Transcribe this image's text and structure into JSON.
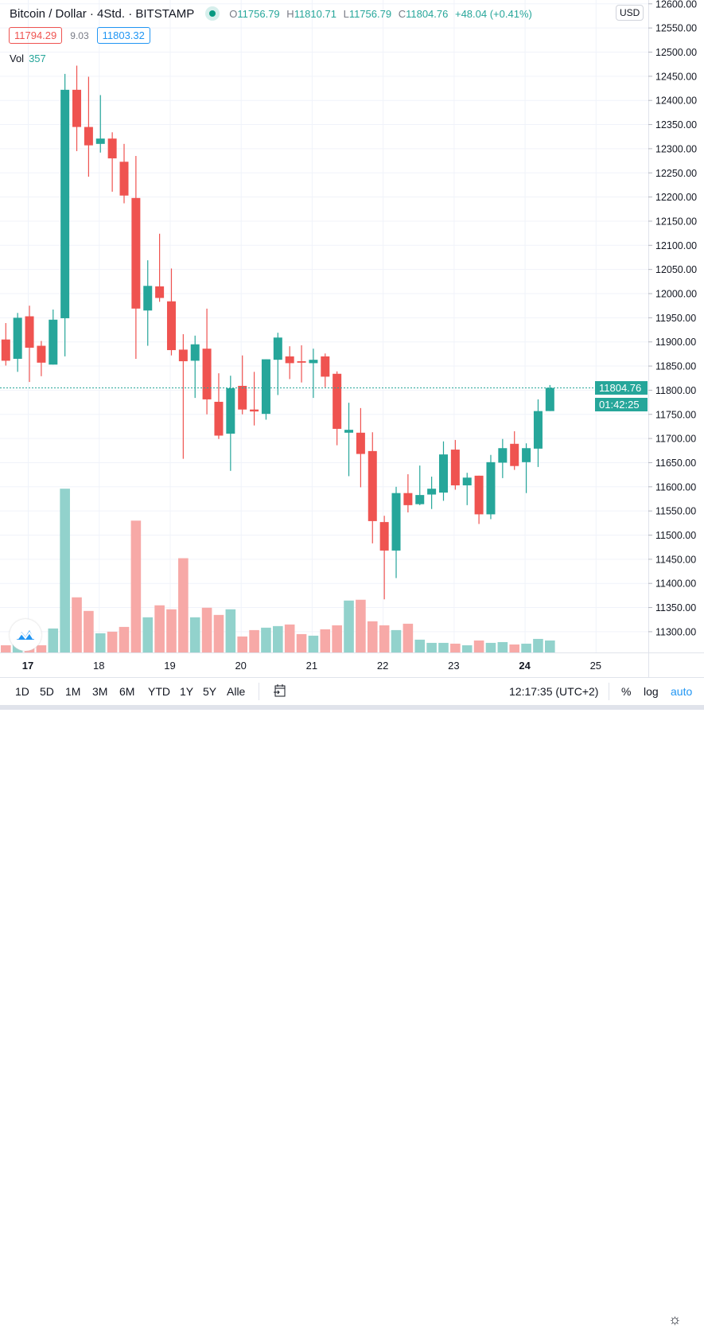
{
  "header": {
    "title": "Bitcoin / Dollar · 4Std. · BITSTAMP",
    "open_label": "O",
    "open": "11756.79",
    "high_label": "H",
    "high": "11810.71",
    "low_label": "L",
    "low": "11756.79",
    "close_label": "C",
    "close": "11804.76",
    "change": "+48.04 (+0.41%)",
    "bid": "11794.29",
    "spread": "9.03",
    "ask": "11803.32",
    "vol_label": "Vol",
    "vol_value": "357"
  },
  "price_axis": {
    "currency": "USD",
    "last_price": "11804.76",
    "countdown": "01:42:25"
  },
  "toolbar": {
    "ranges": [
      "1D",
      "5D",
      "1M",
      "3M",
      "6M",
      "YTD",
      "1Y",
      "5Y",
      "Alle"
    ],
    "time": "12:17:35 (UTC+2)",
    "percent": "%",
    "log": "log",
    "auto": "auto"
  },
  "colors": {
    "up": "#26a69a",
    "down": "#ef5350",
    "up_volume": "#92d2cc",
    "down_volume": "#f7a9a7",
    "grid": "#f0f3fa",
    "accent": "#2196f3"
  },
  "icons": {
    "status": "market-open-dot",
    "settings": "gear-icon",
    "goto_date": "calendar-icon",
    "logo": "tradingview-logo"
  },
  "chart_data": {
    "type": "candlestick",
    "interval": "4Std.",
    "ylim": [
      11292,
      12608
    ],
    "yticks": [
      "12600.00",
      "12550.00",
      "12500.00",
      "12450.00",
      "12400.00",
      "12350.00",
      "12300.00",
      "12250.00",
      "12200.00",
      "12150.00",
      "12100.00",
      "12050.00",
      "12000.00",
      "11950.00",
      "11900.00",
      "11850.00",
      "11800.00",
      "11750.00",
      "11700.00",
      "11650.00",
      "11600.00",
      "11550.00",
      "11500.00",
      "11450.00",
      "11400.00",
      "11350.00",
      "11300.00"
    ],
    "xticks": [
      {
        "label": "17",
        "candle": 2,
        "bold": true
      },
      {
        "label": "18",
        "candle": 8
      },
      {
        "label": "19",
        "candle": 14
      },
      {
        "label": "20",
        "candle": 20
      },
      {
        "label": "21",
        "candle": 26
      },
      {
        "label": "22",
        "candle": 32
      },
      {
        "label": "23",
        "candle": 38
      },
      {
        "label": "24",
        "candle": 44,
        "bold": true
      },
      {
        "label": "25",
        "candle": 50
      }
    ],
    "grid": true,
    "candles": [
      {
        "o": 11905,
        "h": 11939,
        "l": 11851,
        "c": 11861,
        "v": 214
      },
      {
        "o": 11865,
        "h": 11960,
        "l": 11838,
        "c": 11950,
        "v": 317
      },
      {
        "o": 11953,
        "h": 11975,
        "l": 11817,
        "c": 11888,
        "v": 357
      },
      {
        "o": 11892,
        "h": 11902,
        "l": 11829,
        "c": 11857,
        "v": 214
      },
      {
        "o": 11853,
        "h": 11967,
        "l": 11853,
        "c": 11946,
        "v": 714
      },
      {
        "o": 11949,
        "h": 12455,
        "l": 11870,
        "c": 12422,
        "v": 4877
      },
      {
        "o": 12422,
        "h": 12472,
        "l": 12295,
        "c": 12345,
        "v": 1642
      },
      {
        "o": 12345,
        "h": 12449,
        "l": 12242,
        "c": 12307,
        "v": 1237
      },
      {
        "o": 12310,
        "h": 12411,
        "l": 12292,
        "c": 12321,
        "v": 571
      },
      {
        "o": 12321,
        "h": 12334,
        "l": 12211,
        "c": 12280,
        "v": 619
      },
      {
        "o": 12273,
        "h": 12310,
        "l": 12187,
        "c": 12203,
        "v": 761
      },
      {
        "o": 12198,
        "h": 12285,
        "l": 11865,
        "c": 11969,
        "v": 3926
      },
      {
        "o": 11965,
        "h": 12069,
        "l": 11892,
        "c": 12016,
        "v": 1047
      },
      {
        "o": 12015,
        "h": 12124,
        "l": 11983,
        "c": 11991,
        "v": 1404
      },
      {
        "o": 11984,
        "h": 12052,
        "l": 11872,
        "c": 11883,
        "v": 1285
      },
      {
        "o": 11884,
        "h": 11916,
        "l": 11658,
        "c": 11860,
        "v": 2807
      },
      {
        "o": 11861,
        "h": 11913,
        "l": 11784,
        "c": 11895,
        "v": 1047
      },
      {
        "o": 11886,
        "h": 11969,
        "l": 11750,
        "c": 11781,
        "v": 1332
      },
      {
        "o": 11776,
        "h": 11835,
        "l": 11699,
        "c": 11706,
        "v": 1118
      },
      {
        "o": 11710,
        "h": 11830,
        "l": 11633,
        "c": 11804,
        "v": 1285
      },
      {
        "o": 11809,
        "h": 11872,
        "l": 11750,
        "c": 11760,
        "v": 476
      },
      {
        "o": 11760,
        "h": 11838,
        "l": 11727,
        "c": 11756,
        "v": 666
      },
      {
        "o": 11751,
        "h": 11864,
        "l": 11739,
        "c": 11864,
        "v": 738
      },
      {
        "o": 11863,
        "h": 11919,
        "l": 11790,
        "c": 11909,
        "v": 785
      },
      {
        "o": 11870,
        "h": 11891,
        "l": 11823,
        "c": 11856,
        "v": 833
      },
      {
        "o": 11860,
        "h": 11893,
        "l": 11816,
        "c": 11857,
        "v": 547
      },
      {
        "o": 11856,
        "h": 11886,
        "l": 11784,
        "c": 11863,
        "v": 500
      },
      {
        "o": 11870,
        "h": 11876,
        "l": 11806,
        "c": 11828,
        "v": 690
      },
      {
        "o": 11834,
        "h": 11839,
        "l": 11686,
        "c": 11720,
        "v": 809
      },
      {
        "o": 11712,
        "h": 11774,
        "l": 11622,
        "c": 11718,
        "v": 1546
      },
      {
        "o": 11712,
        "h": 11763,
        "l": 11599,
        "c": 11668,
        "v": 1570
      },
      {
        "o": 11674,
        "h": 11713,
        "l": 11483,
        "c": 11529,
        "v": 928
      },
      {
        "o": 11527,
        "h": 11540,
        "l": 11367,
        "c": 11468,
        "v": 809
      },
      {
        "o": 11468,
        "h": 11600,
        "l": 11411,
        "c": 11587,
        "v": 666
      },
      {
        "o": 11587,
        "h": 11626,
        "l": 11547,
        "c": 11562,
        "v": 856
      },
      {
        "o": 11564,
        "h": 11644,
        "l": 11562,
        "c": 11583,
        "v": 381
      },
      {
        "o": 11584,
        "h": 11621,
        "l": 11554,
        "c": 11596,
        "v": 286
      },
      {
        "o": 11588,
        "h": 11694,
        "l": 11571,
        "c": 11667,
        "v": 286
      },
      {
        "o": 11677,
        "h": 11697,
        "l": 11594,
        "c": 11603,
        "v": 262
      },
      {
        "o": 11603,
        "h": 11629,
        "l": 11562,
        "c": 11619,
        "v": 214
      },
      {
        "o": 11623,
        "h": 11623,
        "l": 11523,
        "c": 11543,
        "v": 357
      },
      {
        "o": 11543,
        "h": 11666,
        "l": 11533,
        "c": 11651,
        "v": 286
      },
      {
        "o": 11650,
        "h": 11699,
        "l": 11618,
        "c": 11680,
        "v": 309
      },
      {
        "o": 11689,
        "h": 11715,
        "l": 11635,
        "c": 11643,
        "v": 238
      },
      {
        "o": 11651,
        "h": 11690,
        "l": 11587,
        "c": 11680,
        "v": 262
      },
      {
        "o": 11679,
        "h": 11781,
        "l": 11641,
        "c": 11756.79,
        "v": 404
      },
      {
        "o": 11756.79,
        "h": 11810.71,
        "l": 11756.79,
        "c": 11804.76,
        "v": 357
      }
    ]
  }
}
